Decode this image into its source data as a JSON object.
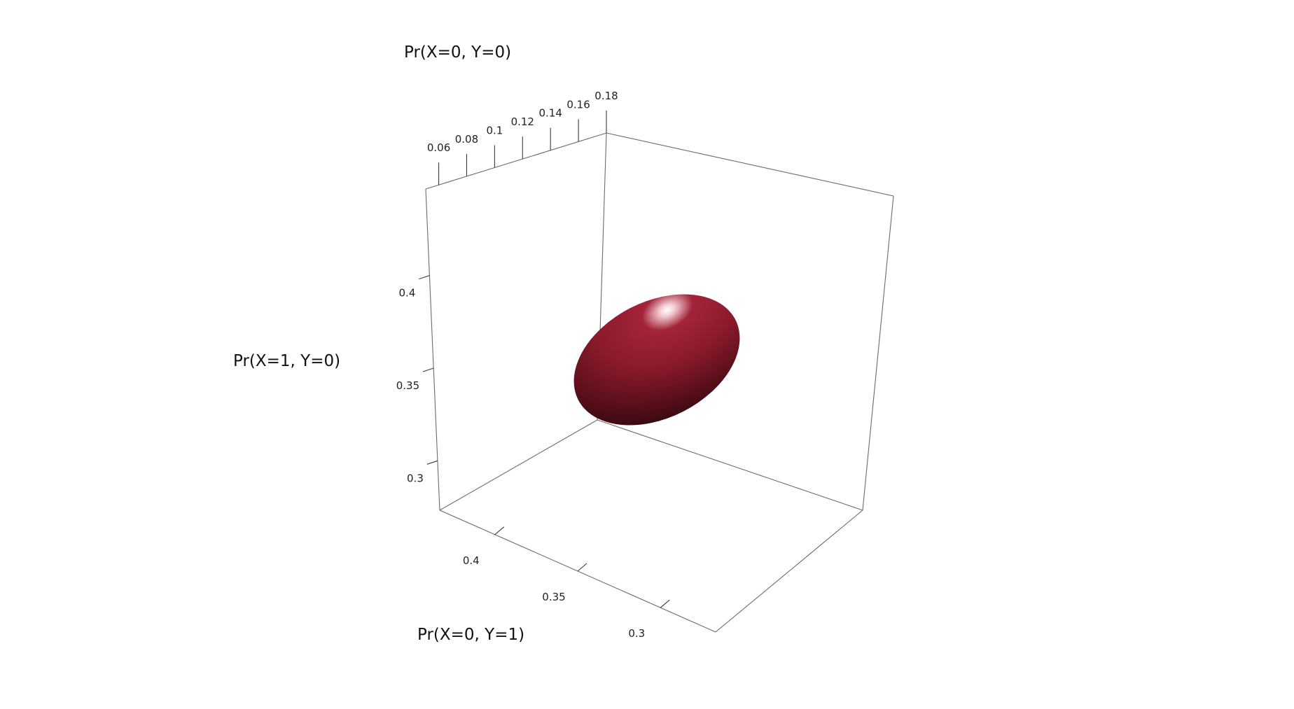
{
  "chart_data": {
    "type": "3d-ellipsoid",
    "axes": {
      "z": {
        "label": "Pr(X=0, Y=0)",
        "ticks": [
          0.06,
          0.08,
          0.1,
          0.12,
          0.14,
          0.16,
          0.18
        ],
        "tick_labels": [
          "0.06",
          "0.08",
          "0.1",
          "0.12",
          "0.14",
          "0.16",
          "0.18"
        ]
      },
      "y": {
        "label": "Pr(X=1, Y=0)",
        "ticks": [
          0.4,
          0.35,
          0.3
        ],
        "tick_labels": [
          "0.4",
          "0.35",
          "0.3"
        ]
      },
      "x": {
        "label": "Pr(X=0, Y=1)",
        "ticks": [
          0.4,
          0.35,
          0.3
        ],
        "tick_labels": [
          "0.4",
          "0.35",
          "0.3"
        ]
      }
    },
    "ellipsoid": {
      "color": "#8b1a2b",
      "highlight_color": "#ffffff",
      "shadow_color": "#2a070c"
    },
    "box_color": "#6b6b6b",
    "background": "#ffffff"
  }
}
